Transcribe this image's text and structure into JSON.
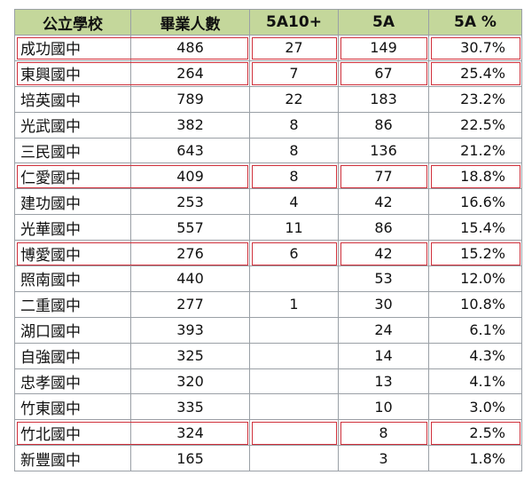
{
  "headers": [
    "公立學校",
    "畢業人數",
    "5A10+",
    "5A",
    "5A %"
  ],
  "rows": [
    {
      "school": "成功國中",
      "grads": "486",
      "a10": "27",
      "a5": "149",
      "pct": "30.7%",
      "highlight": true
    },
    {
      "school": "東興國中",
      "grads": "264",
      "a10": "7",
      "a5": "67",
      "pct": "25.4%",
      "highlight": true
    },
    {
      "school": "培英國中",
      "grads": "789",
      "a10": "22",
      "a5": "183",
      "pct": "23.2%",
      "highlight": false
    },
    {
      "school": "光武國中",
      "grads": "382",
      "a10": "8",
      "a5": "86",
      "pct": "22.5%",
      "highlight": false
    },
    {
      "school": "三民國中",
      "grads": "643",
      "a10": "8",
      "a5": "136",
      "pct": "21.2%",
      "highlight": false
    },
    {
      "school": "仁愛國中",
      "grads": "409",
      "a10": "8",
      "a5": "77",
      "pct": "18.8%",
      "highlight": true
    },
    {
      "school": "建功國中",
      "grads": "253",
      "a10": "4",
      "a5": "42",
      "pct": "16.6%",
      "highlight": false
    },
    {
      "school": "光華國中",
      "grads": "557",
      "a10": "11",
      "a5": "86",
      "pct": "15.4%",
      "highlight": false
    },
    {
      "school": "博愛國中",
      "grads": "276",
      "a10": "6",
      "a5": "42",
      "pct": "15.2%",
      "highlight": true
    },
    {
      "school": "照南國中",
      "grads": "440",
      "a10": "",
      "a5": "53",
      "pct": "12.0%",
      "highlight": false
    },
    {
      "school": "二重國中",
      "grads": "277",
      "a10": "1",
      "a5": "30",
      "pct": "10.8%",
      "highlight": false
    },
    {
      "school": "湖口國中",
      "grads": "393",
      "a10": "",
      "a5": "24",
      "pct": "6.1%",
      "highlight": false
    },
    {
      "school": "自強國中",
      "grads": "325",
      "a10": "",
      "a5": "14",
      "pct": "4.3%",
      "highlight": false
    },
    {
      "school": "忠孝國中",
      "grads": "320",
      "a10": "",
      "a5": "13",
      "pct": "4.1%",
      "highlight": false
    },
    {
      "school": "竹東國中",
      "grads": "335",
      "a10": "",
      "a5": "10",
      "pct": "3.0%",
      "highlight": false
    },
    {
      "school": "竹北國中",
      "grads": "324",
      "a10": "",
      "a5": "8",
      "pct": "2.5%",
      "highlight": true
    },
    {
      "school": "新豐國中",
      "grads": "165",
      "a10": "",
      "a5": "3",
      "pct": "1.8%",
      "highlight": false
    }
  ],
  "colors": {
    "header_bg": "#c4d79b",
    "highlight_border": "#d0303b",
    "grid": "#9aa0a6"
  }
}
